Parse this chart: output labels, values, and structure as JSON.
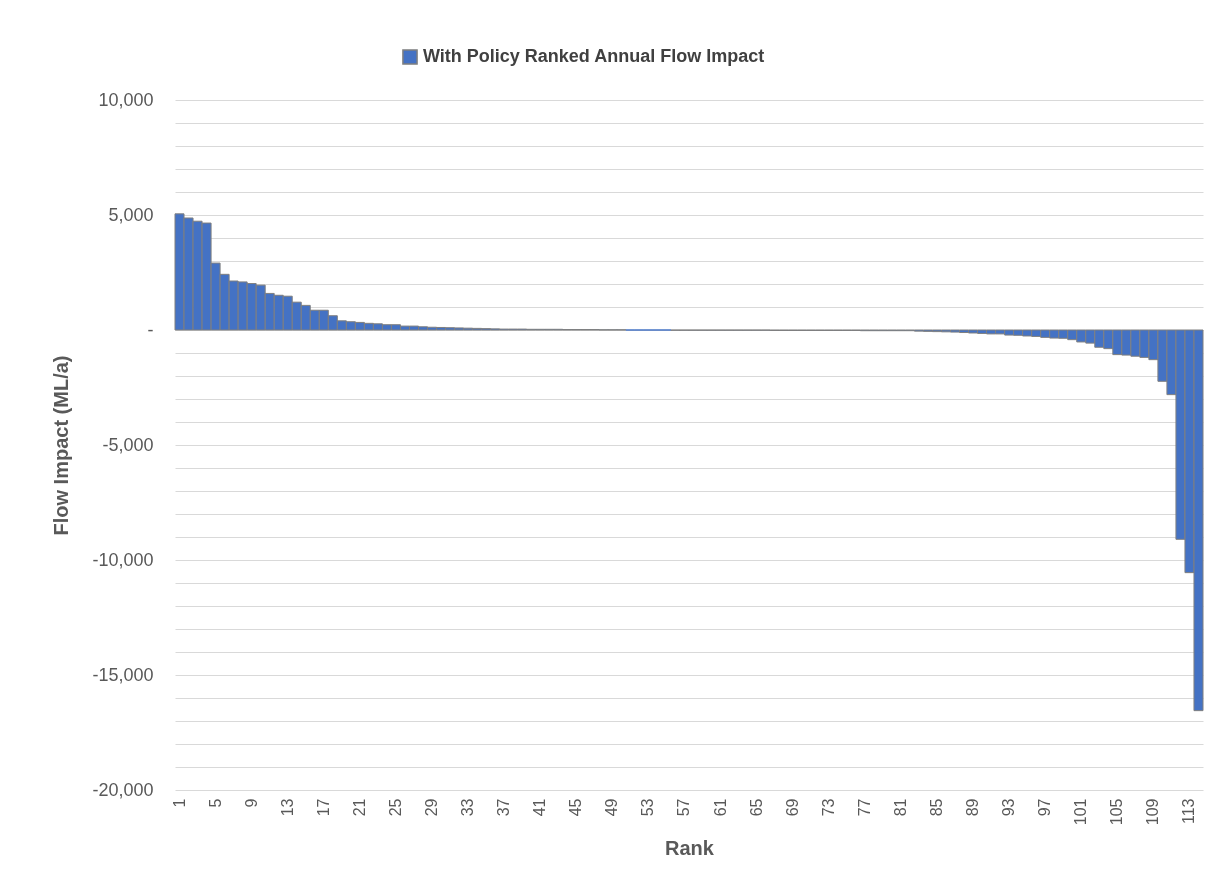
{
  "chart_data": {
    "type": "bar",
    "xlabel": "Rank",
    "ylabel": "Flow Impact (ML/a)",
    "categories": [
      "1",
      null,
      null,
      null,
      "5",
      null,
      null,
      null,
      "9",
      null,
      null,
      null,
      "13",
      null,
      null,
      null,
      "17",
      null,
      null,
      null,
      "21",
      null,
      null,
      null,
      "25",
      null,
      null,
      null,
      "29",
      null,
      null,
      null,
      "33",
      null,
      null,
      null,
      "37",
      null,
      null,
      null,
      "41",
      null,
      null,
      null,
      "45",
      null,
      null,
      null,
      "49",
      null,
      null,
      null,
      "53",
      null,
      null,
      null,
      "57",
      null,
      null,
      null,
      "61",
      null,
      null,
      null,
      "65",
      null,
      null,
      null,
      "69",
      null,
      null,
      null,
      "73",
      null,
      null,
      null,
      "77",
      null,
      null,
      null,
      "81",
      null,
      null,
      null,
      "85",
      null,
      null,
      null,
      "89",
      null,
      null,
      null,
      "93",
      null,
      null,
      null,
      "97",
      null,
      null,
      null,
      "101",
      null,
      null,
      null,
      "105",
      null,
      null,
      null,
      "109",
      null,
      null,
      null,
      "113",
      null
    ],
    "series": [
      {
        "name": "With Policy Ranked Annual Flow Impact",
        "color": "#4472c4",
        "values": [
          5050,
          4870,
          4730,
          4650,
          2910,
          2420,
          2130,
          2090,
          2020,
          1950,
          1590,
          1510,
          1470,
          1210,
          1070,
          860,
          860,
          620,
          400,
          360,
          330,
          290,
          270,
          230,
          230,
          170,
          170,
          140,
          120,
          110,
          100,
          90,
          80,
          70,
          60,
          50,
          40,
          40,
          40,
          30,
          30,
          30,
          30,
          20,
          20,
          20,
          20,
          10,
          10,
          10,
          0,
          0,
          0,
          0,
          0,
          -10,
          -10,
          -10,
          -10,
          -10,
          -10,
          -10,
          -10,
          -10,
          -10,
          -10,
          -20,
          -20,
          -20,
          -20,
          -20,
          -20,
          -20,
          -20,
          -20,
          -20,
          -30,
          -30,
          -30,
          -30,
          -30,
          -30,
          -50,
          -60,
          -70,
          -80,
          -90,
          -110,
          -130,
          -150,
          -170,
          -170,
          -220,
          -230,
          -260,
          -280,
          -320,
          -350,
          -360,
          -420,
          -520,
          -570,
          -750,
          -810,
          -1070,
          -1090,
          -1140,
          -1190,
          -1290,
          -2230,
          -2810,
          -9100,
          -10550,
          -16550
        ]
      }
    ],
    "ylim": [
      -20000,
      10000
    ],
    "yticks": [
      {
        "value": 10000,
        "label": "10,000"
      },
      {
        "value": 9000,
        "label": null
      },
      {
        "value": 8000,
        "label": null
      },
      {
        "value": 7000,
        "label": null
      },
      {
        "value": 6000,
        "label": null
      },
      {
        "value": 5000,
        "label": "5,000"
      },
      {
        "value": 4000,
        "label": null
      },
      {
        "value": 3000,
        "label": null
      },
      {
        "value": 2000,
        "label": null
      },
      {
        "value": 1000,
        "label": null
      },
      {
        "value": 0,
        "label": "-"
      },
      {
        "value": -1000,
        "label": null
      },
      {
        "value": -2000,
        "label": null
      },
      {
        "value": -3000,
        "label": null
      },
      {
        "value": -4000,
        "label": null
      },
      {
        "value": -5000,
        "label": "-5,000"
      },
      {
        "value": -6000,
        "label": null
      },
      {
        "value": -7000,
        "label": null
      },
      {
        "value": -8000,
        "label": null
      },
      {
        "value": -9000,
        "label": null
      },
      {
        "value": -10000,
        "label": "-10,000"
      },
      {
        "value": -11000,
        "label": null
      },
      {
        "value": -12000,
        "label": null
      },
      {
        "value": -13000,
        "label": null
      },
      {
        "value": -14000,
        "label": null
      },
      {
        "value": -15000,
        "label": "-15,000"
      },
      {
        "value": -16000,
        "label": null
      },
      {
        "value": -17000,
        "label": null
      },
      {
        "value": -18000,
        "label": null
      },
      {
        "value": -19000,
        "label": null
      },
      {
        "value": -20000,
        "label": "-20,000"
      }
    ],
    "grid": true,
    "legend": "top"
  }
}
